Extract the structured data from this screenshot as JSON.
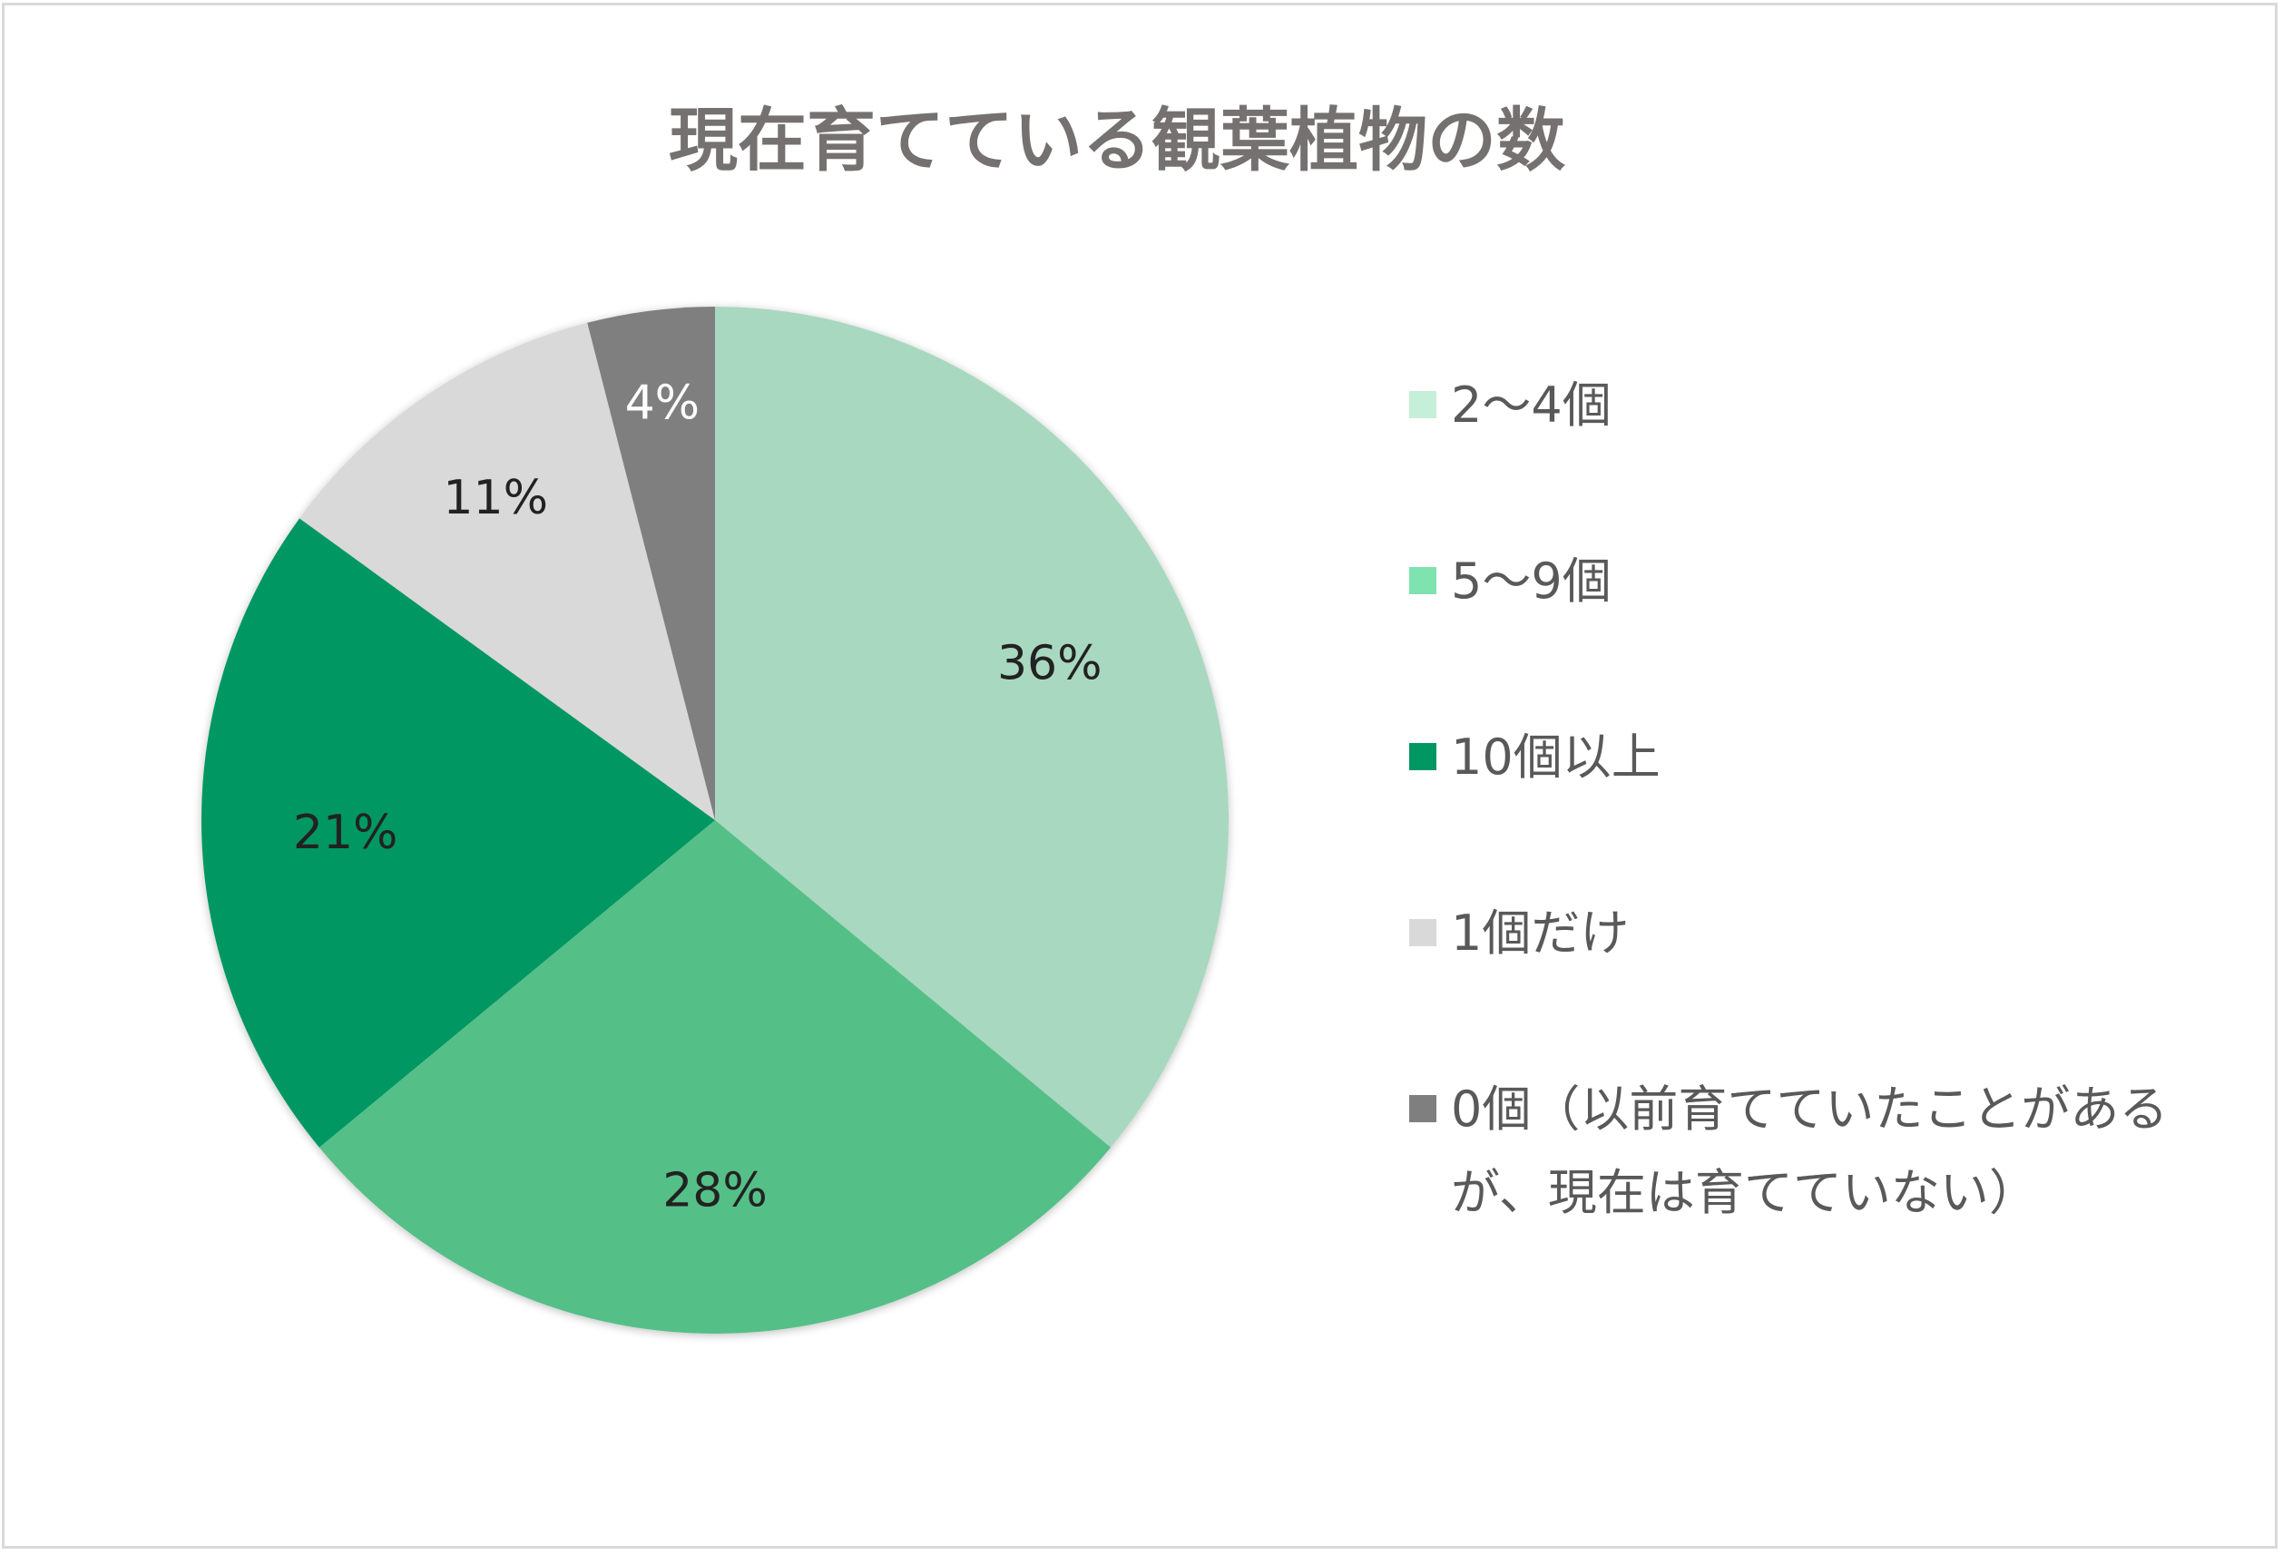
{
  "chart_data": {
    "type": "pie",
    "title": "現在育てている観葉植物の数",
    "start_angle_deg": 0,
    "direction": "clockwise",
    "legend_position": "right",
    "slices": [
      {
        "label": "2〜4個",
        "value": 36,
        "data_label": "36%",
        "color": "#a9d8c0",
        "label_color": "#222222"
      },
      {
        "label": "5〜9個",
        "value": 28,
        "data_label": "28%",
        "color": "#55bf88",
        "label_color": "#222222"
      },
      {
        "label": "10個以上",
        "value": 21,
        "data_label": "21%",
        "color": "#019763",
        "label_color": "#222222"
      },
      {
        "label": "1個だけ",
        "value": 11,
        "data_label": "11%",
        "color": "#d9d9d9",
        "label_color": "#222222"
      },
      {
        "label": "0個（以前育てていたことがあるが、現在は育てていない）",
        "legend_lines": [
          "0個（以前育てていたことがある",
          "が、現在は育てていない）"
        ],
        "value": 4,
        "data_label": "4%",
        "color": "#7f7f7f",
        "label_color": "#ffffff"
      }
    ],
    "legend_swatch_colors": [
      "#c6efda",
      "#7fe3b0",
      "#019763",
      "#d9d9d9",
      "#7f7f7f"
    ]
  }
}
